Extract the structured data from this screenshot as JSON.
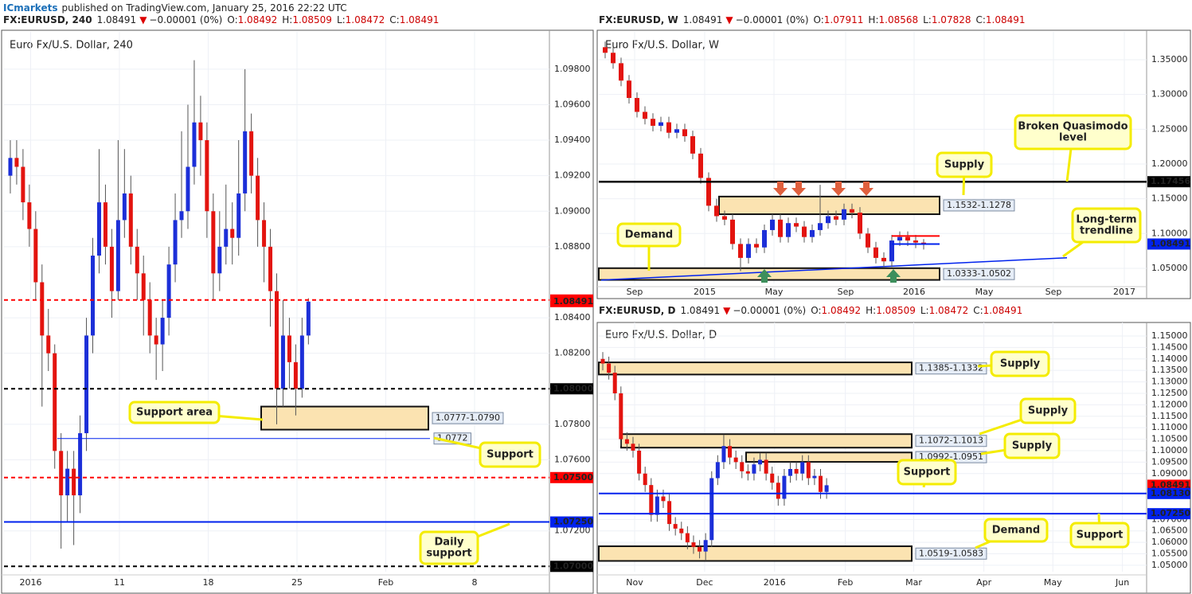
{
  "header": {
    "brand": "ICmarkets",
    "text": "published on TradingView.com, January 25, 2016 22:22 UTC"
  },
  "chart_data": [
    {
      "type": "candlestick",
      "symbol": "FX:EURUSD, 240",
      "last": "1.08491",
      "direction": "▼",
      "change": "−0.00001 (0%)",
      "ohlc": [
        {
          "label": "O:",
          "value": "1.08492"
        },
        {
          "label": "H:",
          "value": "1.08509"
        },
        {
          "label": "L:",
          "value": "1.08472"
        },
        {
          "label": "C:",
          "value": "1.08491"
        }
      ],
      "title": "Euro Fx/U.S. Dollar, 240",
      "up_color": "#1c2fd8",
      "down_color": "#e3140f",
      "grid": true,
      "xlim": [
        -1,
        85
      ],
      "ylim": [
        1.0697,
        1.1001
      ],
      "xticks": [
        {
          "value": 3.2,
          "label": "2016"
        },
        {
          "value": 17.2,
          "label": "11"
        },
        {
          "value": 31.2,
          "label": "18"
        },
        {
          "value": 45.2,
          "label": "25"
        },
        {
          "value": 59.2,
          "label": "Feb"
        },
        {
          "value": 73.2,
          "label": "8"
        }
      ],
      "yticks": [
        {
          "value": 1.098,
          "label": "1.09800"
        },
        {
          "value": 1.096,
          "label": "1.09600"
        },
        {
          "value": 1.094,
          "label": "1.09400"
        },
        {
          "value": 1.092,
          "label": "1.09200"
        },
        {
          "value": 1.09,
          "label": "1.09000"
        },
        {
          "value": 1.088,
          "label": "1.08800"
        },
        {
          "value": 1.084,
          "label": "1.08400"
        },
        {
          "value": 1.082,
          "label": "1.08200"
        },
        {
          "value": 1.078,
          "label": "1.07800"
        },
        {
          "value": 1.076,
          "label": "1.07600"
        },
        {
          "value": 1.072,
          "label": "1.07200"
        }
      ],
      "open": [
        1.092,
        1.093,
        1.0925,
        1.0905,
        1.089,
        1.086,
        1.083,
        1.082,
        1.0765,
        1.074,
        1.0755,
        1.074,
        1.0775,
        1.083,
        1.0875,
        1.0905,
        1.088,
        1.0855,
        1.0895,
        1.091,
        1.088,
        1.0865,
        1.085,
        1.083,
        1.0825,
        1.084,
        1.087,
        1.0895,
        1.09,
        1.0925,
        1.095,
        1.094,
        1.09,
        1.0865,
        1.088,
        1.089,
        1.0885,
        1.091,
        1.0945,
        1.092,
        1.0895,
        1.088,
        1.0855,
        1.08,
        1.083,
        1.0815,
        1.08,
        1.083
      ],
      "high": [
        1.094,
        1.094,
        1.0935,
        1.0915,
        1.09,
        1.087,
        1.0845,
        1.0825,
        1.0775,
        1.0765,
        1.0765,
        1.0785,
        1.084,
        1.0885,
        1.0935,
        1.0915,
        1.089,
        1.094,
        1.0935,
        1.092,
        1.089,
        1.0875,
        1.086,
        1.084,
        1.085,
        1.088,
        1.091,
        1.0945,
        1.096,
        1.0985,
        1.0965,
        1.095,
        1.091,
        1.09,
        1.0915,
        1.0905,
        1.094,
        1.098,
        1.0955,
        1.093,
        1.0905,
        1.089,
        1.0865,
        1.085,
        1.084,
        1.0825,
        1.084,
        1.0851
      ],
      "low": [
        1.091,
        1.0915,
        1.0895,
        1.088,
        1.085,
        1.079,
        1.081,
        1.0755,
        1.071,
        1.0725,
        1.0712,
        1.073,
        1.0765,
        1.082,
        1.0865,
        1.087,
        1.084,
        1.085,
        1.0885,
        1.087,
        1.085,
        1.083,
        1.082,
        1.0805,
        1.081,
        1.083,
        1.086,
        1.0885,
        1.089,
        1.0915,
        1.092,
        1.0885,
        1.085,
        1.0855,
        1.087,
        1.087,
        1.0875,
        1.09,
        1.091,
        1.088,
        1.086,
        1.0835,
        1.078,
        1.079,
        1.08,
        1.0785,
        1.0795,
        1.0825
      ],
      "close": [
        1.093,
        1.0925,
        1.0905,
        1.089,
        1.086,
        1.083,
        1.082,
        1.0765,
        1.074,
        1.0755,
        1.074,
        1.0775,
        1.083,
        1.0875,
        1.0905,
        1.088,
        1.0855,
        1.0895,
        1.091,
        1.088,
        1.0865,
        1.085,
        1.083,
        1.0825,
        1.084,
        1.087,
        1.0895,
        1.09,
        1.0925,
        1.095,
        1.094,
        1.09,
        1.0865,
        1.088,
        1.089,
        1.0885,
        1.091,
        1.0945,
        1.092,
        1.0895,
        1.088,
        1.0855,
        1.08,
        1.083,
        1.0815,
        1.08,
        1.083,
        1.08491
      ],
      "levels": [
        {
          "value": 1.085,
          "label": "1.08500",
          "color": "#ff0000",
          "style": "dashed",
          "tag": "axis"
        },
        {
          "value": 1.08491,
          "label": "1.08491",
          "color": "#ff0000",
          "style": "none",
          "tag": "axis"
        },
        {
          "value": 1.08,
          "label": "1.08000",
          "color": "#000000",
          "style": "dashed",
          "tag": "axis"
        },
        {
          "value": 1.075,
          "label": "1.07500",
          "color": "#ff0000",
          "style": "dashed",
          "tag": "axis"
        },
        {
          "value": 1.0725,
          "label": "1.07250",
          "color": "#0022ee",
          "style": "solid",
          "tag": "axis"
        },
        {
          "value": 1.07,
          "label": "1.07000",
          "color": "#000000",
          "style": "dashed",
          "tag": "axis"
        },
        {
          "value": 1.0772,
          "label": "1.0772",
          "color": "#0022ee",
          "style": "thin",
          "tag": "box"
        }
      ],
      "zones": [
        {
          "low": 1.0777,
          "high": 1.079,
          "label": "1.0777-1.0790"
        }
      ],
      "callouts": [
        [
          "Support area"
        ],
        [
          "Support"
        ],
        [
          "Daily",
          "support"
        ]
      ]
    },
    {
      "type": "candlestick",
      "symbol": "FX:EURUSD, W",
      "last": "1.08491",
      "direction": "▼",
      "change": "−0.00001 (0%)",
      "ohlc": [
        {
          "label": "O:",
          "value": "1.07911"
        },
        {
          "label": "H:",
          "value": "1.08568"
        },
        {
          "label": "L:",
          "value": "1.07828"
        },
        {
          "label": "C:",
          "value": "1.08491"
        }
      ],
      "title": "Euro Fx/U.S. Dollar, W",
      "up_color": "#1c2fd8",
      "down_color": "#e3140f",
      "grid": true,
      "xlim": [
        -0.8,
        68
      ],
      "ylim": [
        1.0282,
        1.3901
      ],
      "xticks": [
        {
          "value": 3.7,
          "label": "Sep"
        },
        {
          "value": 12.5,
          "label": "2015"
        },
        {
          "value": 21.2,
          "label": "May"
        },
        {
          "value": 30.2,
          "label": "Sep"
        },
        {
          "value": 38.8,
          "label": "2016"
        },
        {
          "value": 47.6,
          "label": "May"
        },
        {
          "value": 56.3,
          "label": "Sep"
        },
        {
          "value": 65.2,
          "label": "2017"
        }
      ],
      "yticks": [
        {
          "value": 1.35,
          "label": "1.35000"
        },
        {
          "value": 1.3,
          "label": "1.30000"
        },
        {
          "value": 1.25,
          "label": "1.25000"
        },
        {
          "value": 1.2,
          "label": "1.20000"
        },
        {
          "value": 1.15,
          "label": "1.15000"
        },
        {
          "value": 1.1,
          "label": "1.10000"
        },
        {
          "value": 1.05,
          "label": "1.05000"
        }
      ],
      "open": [
        1.368,
        1.36,
        1.345,
        1.32,
        1.295,
        1.275,
        1.265,
        1.255,
        1.26,
        1.245,
        1.25,
        1.24,
        1.215,
        1.18,
        1.14,
        1.125,
        1.12,
        1.085,
        1.065,
        1.085,
        1.08,
        1.105,
        1.12,
        1.095,
        1.115,
        1.11,
        1.095,
        1.105,
        1.115,
        1.125,
        1.12,
        1.135,
        1.13,
        1.1,
        1.08,
        1.065,
        1.06,
        1.09,
        1.095,
        1.09,
        1.087
      ],
      "high": [
        1.376,
        1.368,
        1.353,
        1.328,
        1.303,
        1.283,
        1.273,
        1.268,
        1.268,
        1.258,
        1.258,
        1.248,
        1.223,
        1.188,
        1.15,
        1.133,
        1.128,
        1.093,
        1.093,
        1.093,
        1.113,
        1.128,
        1.128,
        1.123,
        1.123,
        1.118,
        1.113,
        1.17,
        1.133,
        1.133,
        1.143,
        1.143,
        1.138,
        1.108,
        1.088,
        1.073,
        1.098,
        1.103,
        1.103,
        1.098,
        1.092
      ],
      "low": [
        1.352,
        1.337,
        1.312,
        1.287,
        1.267,
        1.257,
        1.247,
        1.247,
        1.237,
        1.237,
        1.232,
        1.207,
        1.172,
        1.132,
        1.117,
        1.112,
        1.077,
        1.046,
        1.057,
        1.072,
        1.072,
        1.097,
        1.087,
        1.087,
        1.102,
        1.087,
        1.087,
        1.097,
        1.107,
        1.112,
        1.112,
        1.122,
        1.092,
        1.072,
        1.057,
        1.052,
        1.052,
        1.082,
        1.082,
        1.079,
        1.077
      ],
      "close": [
        1.36,
        1.345,
        1.32,
        1.295,
        1.275,
        1.265,
        1.255,
        1.26,
        1.245,
        1.25,
        1.24,
        1.215,
        1.18,
        1.14,
        1.125,
        1.12,
        1.085,
        1.065,
        1.085,
        1.08,
        1.105,
        1.12,
        1.095,
        1.115,
        1.11,
        1.095,
        1.105,
        1.115,
        1.125,
        1.12,
        1.135,
        1.13,
        1.1,
        1.08,
        1.065,
        1.06,
        1.09,
        1.095,
        1.09,
        1.087,
        1.08491
      ],
      "levels": [
        {
          "value": 1.17456,
          "label": "1.17456",
          "color": "#000000",
          "style": "thick",
          "tag": "axis"
        },
        {
          "value": 1.08491,
          "label": "1.08491",
          "color": "#0022ee",
          "style": "solid",
          "tag": "axis"
        },
        {
          "value": 1.0965,
          "color": "#ff0000",
          "style": "solid"
        }
      ],
      "zones": [
        {
          "high": 1.1532,
          "low": 1.1278,
          "label": "1.1532-1.1278"
        },
        {
          "low": 1.0333,
          "high": 1.0502,
          "label": "1.0333-1.0502"
        }
      ],
      "trendline": {
        "from": 1.0331,
        "to": 1.0652,
        "color": "#0022ee"
      },
      "callouts": [
        [
          "Supply"
        ],
        [
          "Broken Quasimodo",
          "level"
        ],
        [
          "Demand"
        ],
        [
          "Long-term",
          "trendline"
        ]
      ]
    },
    {
      "type": "candlestick",
      "symbol": "FX:EURUSD, D",
      "last": "1.08491",
      "direction": "▼",
      "change": "−0.00001 (0%)",
      "ohlc": [
        {
          "label": "O:",
          "value": "1.08492"
        },
        {
          "label": "H:",
          "value": "1.08509"
        },
        {
          "label": "L:",
          "value": "1.08472"
        },
        {
          "label": "C:",
          "value": "1.08491"
        }
      ],
      "title": "Euro Fx/U.S. Dollar, D",
      "up_color": "#1c2fd8",
      "down_color": "#e3140f",
      "grid": true,
      "xlim": [
        -0.66,
        89.9
      ],
      "ylim": [
        1.0472,
        1.1559
      ],
      "xticks": [
        {
          "value": 5.26,
          "label": "Nov"
        },
        {
          "value": 16.84,
          "label": "Dec"
        },
        {
          "value": 28.4,
          "label": "2016"
        },
        {
          "value": 40.1,
          "label": "Feb"
        },
        {
          "value": 51.4,
          "label": "Mar"
        },
        {
          "value": 63.0,
          "label": "Apr"
        },
        {
          "value": 74.4,
          "label": "May"
        },
        {
          "value": 85.9,
          "label": "Jun"
        }
      ],
      "yticks": [
        {
          "value": 1.15,
          "label": "1.15000"
        },
        {
          "value": 1.145,
          "label": "1.14500"
        },
        {
          "value": 1.14,
          "label": "1.14000"
        },
        {
          "value": 1.135,
          "label": "1.13500"
        },
        {
          "value": 1.13,
          "label": "1.13000"
        },
        {
          "value": 1.125,
          "label": "1.12500"
        },
        {
          "value": 1.12,
          "label": "1.12000"
        },
        {
          "value": 1.115,
          "label": "1.11500"
        },
        {
          "value": 1.11,
          "label": "1.11000"
        },
        {
          "value": 1.105,
          "label": "1.10500"
        },
        {
          "value": 1.1,
          "label": "1.10000"
        },
        {
          "value": 1.095,
          "label": "1.09500"
        },
        {
          "value": 1.09,
          "label": "1.09000"
        },
        {
          "value": 1.07,
          "label": "1.07000"
        },
        {
          "value": 1.065,
          "label": "1.06500"
        },
        {
          "value": 1.06,
          "label": "1.06000"
        },
        {
          "value": 1.055,
          "label": "1.05500"
        },
        {
          "value": 1.05,
          "label": "1.05000"
        }
      ],
      "open": [
        1.14,
        1.138,
        1.134,
        1.125,
        1.105,
        1.103,
        1.1,
        1.09,
        1.085,
        1.072,
        1.08,
        1.078,
        1.068,
        1.066,
        1.064,
        1.06,
        1.058,
        1.056,
        1.061,
        1.088,
        1.095,
        1.102,
        1.097,
        1.095,
        1.091,
        1.09,
        1.094,
        1.096,
        1.09,
        1.086,
        1.079,
        1.089,
        1.092,
        1.09,
        1.095,
        1.088,
        1.089,
        1.082
      ],
      "high": [
        1.143,
        1.141,
        1.137,
        1.128,
        1.108,
        1.106,
        1.103,
        1.093,
        1.088,
        1.083,
        1.083,
        1.081,
        1.071,
        1.069,
        1.067,
        1.063,
        1.061,
        1.064,
        1.091,
        1.098,
        1.107,
        1.105,
        1.1,
        1.098,
        1.094,
        1.097,
        1.099,
        1.099,
        1.093,
        1.089,
        1.092,
        1.095,
        1.095,
        1.098,
        1.098,
        1.092,
        1.092,
        1.088
      ],
      "low": [
        1.135,
        1.131,
        1.122,
        1.102,
        1.1,
        1.097,
        1.087,
        1.082,
        1.069,
        1.069,
        1.075,
        1.065,
        1.063,
        1.061,
        1.057,
        1.055,
        1.053,
        1.052,
        1.058,
        1.085,
        1.092,
        1.094,
        1.092,
        1.088,
        1.087,
        1.087,
        1.091,
        1.087,
        1.083,
        1.076,
        1.076,
        1.086,
        1.087,
        1.087,
        1.085,
        1.085,
        1.079,
        1.079
      ],
      "close": [
        1.138,
        1.134,
        1.125,
        1.105,
        1.103,
        1.1,
        1.09,
        1.085,
        1.072,
        1.08,
        1.078,
        1.068,
        1.066,
        1.064,
        1.06,
        1.058,
        1.056,
        1.061,
        1.088,
        1.095,
        1.102,
        1.097,
        1.095,
        1.091,
        1.09,
        1.094,
        1.096,
        1.09,
        1.086,
        1.079,
        1.089,
        1.092,
        1.09,
        1.095,
        1.088,
        1.089,
        1.082,
        1.08491
      ],
      "levels": [
        {
          "value": 1.08491,
          "label": "1.08491",
          "color": "#ff0000",
          "style": "none",
          "tag": "axis"
        },
        {
          "value": 1.0813,
          "label": "1.08130",
          "color": "#0022ee",
          "style": "solid",
          "tag": "axis"
        },
        {
          "value": 1.0725,
          "label": "1.07250",
          "color": "#0022ee",
          "style": "solid",
          "tag": "axis"
        }
      ],
      "zones": [
        {
          "high": 1.1385,
          "low": 1.1332,
          "label": "1.1385-1.1332"
        },
        {
          "high": 1.1072,
          "low": 1.1013,
          "label": "1.1072-1.1013"
        },
        {
          "high": 1.0992,
          "low": 1.0951,
          "label": "1.0992-1.0951"
        },
        {
          "low": 1.0519,
          "high": 1.0583,
          "label": "1.0519-1.0583"
        }
      ],
      "callouts": [
        [
          "Supply"
        ],
        [
          "Supply"
        ],
        [
          "Supply"
        ],
        [
          "Support"
        ],
        [
          "Demand"
        ],
        [
          "Support"
        ]
      ]
    }
  ]
}
